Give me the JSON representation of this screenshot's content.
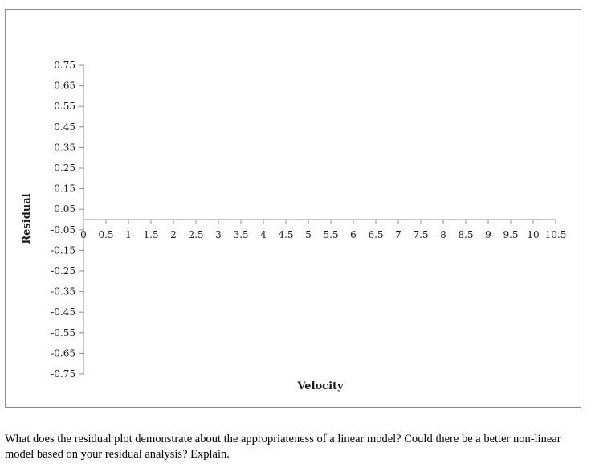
{
  "chart_data": {
    "type": "scatter",
    "xlabel": "Velocity",
    "ylabel": "Residual",
    "xlim": [
      0,
      10.5
    ],
    "ylim": [
      -0.75,
      0.75
    ],
    "x_ticks": [
      "0",
      "0.5",
      "1",
      "1.5",
      "2",
      "2.5",
      "3",
      "3.5",
      "4",
      "4.5",
      "5",
      "5.5",
      "6",
      "6.5",
      "7",
      "7.5",
      "8",
      "8.5",
      "9",
      "9.5",
      "10",
      "10.5"
    ],
    "y_ticks": [
      "0.75",
      "0.65",
      "0.55",
      "0.45",
      "0.35",
      "0.25",
      "0.15",
      "0.05",
      "-0.05",
      "-0.15",
      "-0.25",
      "-0.35",
      "-0.45",
      "-0.55",
      "-0.65",
      "-0.75"
    ],
    "points": [],
    "grid": false,
    "legend": "none"
  },
  "question": {
    "text": "What does the residual plot demonstrate about the appropriateness of a linear model? Could there be a better non-linear model based on your residual analysis? Explain."
  },
  "colors": {
    "axis": "#8c8c8c",
    "text": "#1a1a1a"
  }
}
